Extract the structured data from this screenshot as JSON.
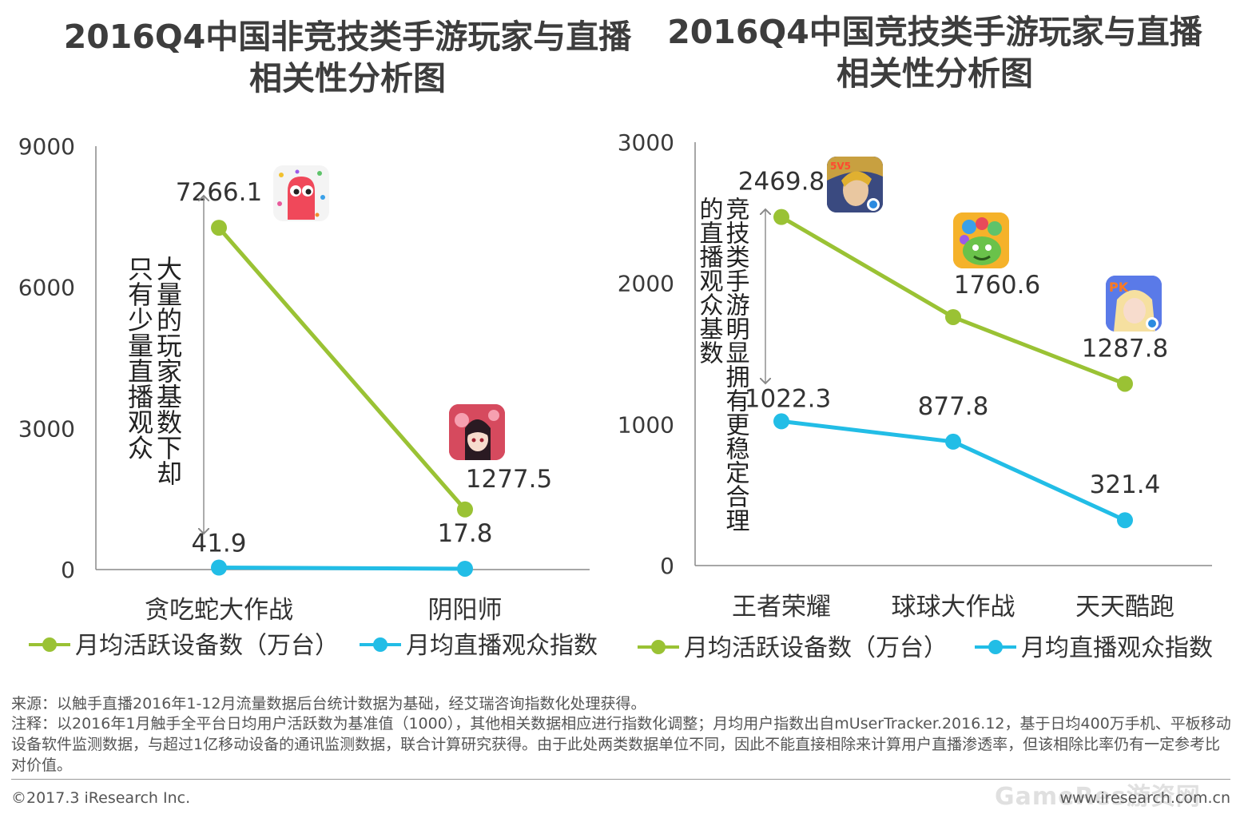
{
  "titles": {
    "left_line1": "2016Q4中国非竞技类手游玩家与直播",
    "left_line2": "相关性分析图",
    "right_line1": "2016Q4中国竞技类手游玩家与直播",
    "right_line2": "相关性分析图"
  },
  "legend": {
    "devices": "月均活跃设备数（万台）",
    "viewers": "月均直播观众指数"
  },
  "annotations": {
    "left_col_a": "大量的玩家基数下却",
    "left_col_b": "只有少量直播观众",
    "right_col_a": "竞技类手游明显拥有更稳定合理",
    "right_col_b": "的直播观众基数"
  },
  "footer": {
    "source": "来源：以触手直播2016年1-12月流量数据后台统计数据为基础，经艾瑞咨询指数化处理获得。",
    "note": "注释：以2016年1月触手全平台日均用户活跃数为基准值（1000），其他相关数据相应进行指数化调整；月均用户指数出自mUserTracker.2016.12，基于日均400万手机、平板移动设备软件监测数据，与超过1亿移动设备的通讯监测数据，联合计算研究获得。由于此处两类数据单位不同，因此不能直接相除来计算用户直播渗透率，但该相除比率仍有一定参考比对价值。",
    "copyright": "©2017.3 iResearch Inc.",
    "website": "www.iresearch.com.cn",
    "watermark": "GameRes游资网"
  },
  "colors": {
    "devices": "#9ac234",
    "viewers": "#22bde6",
    "axis": "#8a8a8a",
    "text": "#3a3a3a"
  },
  "chart_data": [
    {
      "type": "line",
      "title": "2016Q4中国非竞技类手游玩家与直播相关性分析图",
      "categories": [
        "贪吃蛇大作战",
        "阴阳师"
      ],
      "ylim": [
        0,
        9000
      ],
      "yticks": [
        0,
        3000,
        6000,
        9000
      ],
      "grid": false,
      "legend_position": "bottom",
      "series": [
        {
          "name": "月均活跃设备数（万台）",
          "values": [
            7266.1,
            1277.5
          ],
          "labels": [
            "7266.1",
            "1277.5"
          ]
        },
        {
          "name": "月均直播观众指数",
          "values": [
            41.9,
            17.8
          ],
          "labels": [
            "41.9",
            "17.8"
          ]
        }
      ]
    },
    {
      "type": "line",
      "title": "2016Q4中国竞技类手游玩家与直播相关性分析图",
      "categories": [
        "王者荣耀",
        "球球大作战",
        "天天酷跑"
      ],
      "ylim": [
        0,
        3000
      ],
      "yticks": [
        0,
        1000,
        2000,
        3000
      ],
      "grid": false,
      "legend_position": "bottom",
      "series": [
        {
          "name": "月均活跃设备数（万台）",
          "values": [
            2469.8,
            1760.6,
            1287.8
          ],
          "labels": [
            "2469.8",
            "1760.6",
            "1287.8"
          ]
        },
        {
          "name": "月均直播观众指数",
          "values": [
            1022.3,
            877.8,
            321.4
          ],
          "labels": [
            "1022.3",
            "877.8",
            "321.4"
          ]
        }
      ]
    }
  ]
}
